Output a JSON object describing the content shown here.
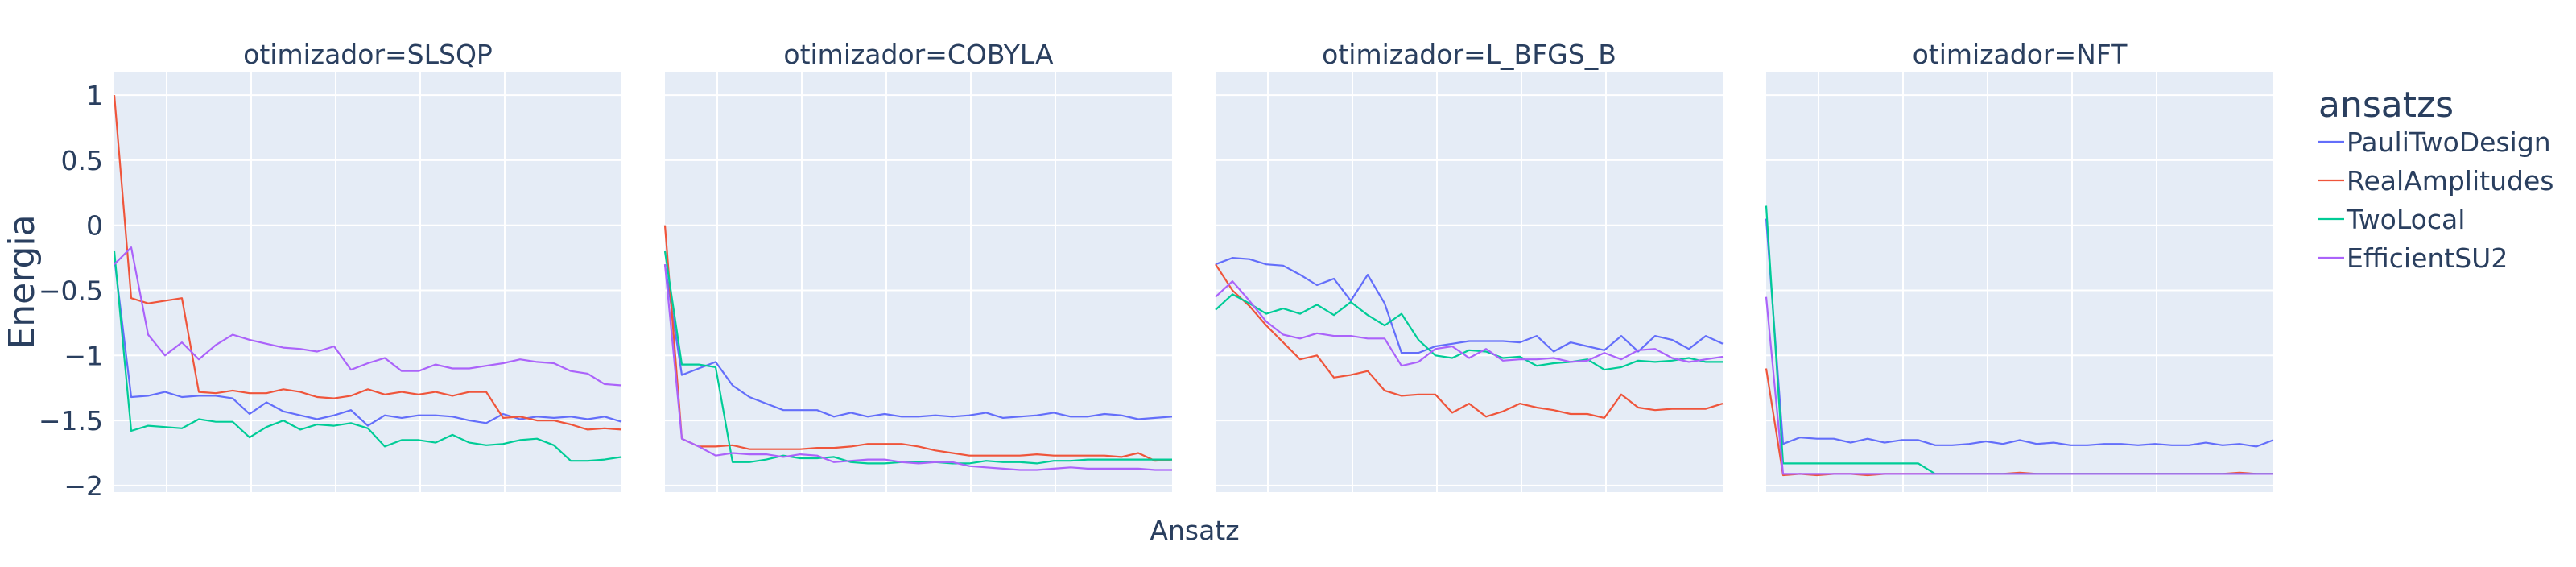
{
  "chart_data": {
    "type": "line",
    "facet_label": "otimizador",
    "panels": [
      "SLSQP",
      "COBYLA",
      "L_BFGS_B",
      "NFT"
    ],
    "xlabel": "Ansatz",
    "ylabel": "Energia",
    "ylim": [
      -2.05,
      1.18
    ],
    "yticks": [
      1,
      0.5,
      0,
      -0.5,
      -1,
      -1.5,
      -2
    ],
    "ytick_labels": [
      "1",
      "0.5",
      "0",
      "−0.5",
      "−1",
      "−1.5",
      "−2"
    ],
    "xlim": [
      0,
      30
    ],
    "grid": true,
    "legend": {
      "title": "ansatzs",
      "placement": "right"
    },
    "series": [
      {
        "name": "PauliTwoDesign",
        "color": "#636efa",
        "panels": [
          [
            -0.25,
            -1.32,
            -1.31,
            -1.28,
            -1.32,
            -1.31,
            -1.31,
            -1.33,
            -1.45,
            -1.36,
            -1.43,
            -1.46,
            -1.49,
            -1.46,
            -1.42,
            -1.54,
            -1.46,
            -1.48,
            -1.46,
            -1.46,
            -1.47,
            -1.5,
            -1.52,
            -1.45,
            -1.49,
            -1.47,
            -1.48,
            -1.47,
            -1.49,
            -1.47,
            -1.51
          ],
          [
            -0.3,
            -1.15,
            -1.1,
            -1.05,
            -1.23,
            -1.32,
            -1.37,
            -1.42,
            -1.42,
            -1.42,
            -1.47,
            -1.44,
            -1.47,
            -1.45,
            -1.47,
            -1.47,
            -1.46,
            -1.47,
            -1.46,
            -1.44,
            -1.48,
            -1.47,
            -1.46,
            -1.44,
            -1.47,
            -1.47,
            -1.45,
            -1.46,
            -1.49,
            -1.48,
            -1.47
          ],
          [
            -0.3,
            -0.25,
            -0.26,
            -0.3,
            -0.31,
            -0.38,
            -0.46,
            -0.41,
            -0.58,
            -0.38,
            -0.6,
            -0.98,
            -0.98,
            -0.93,
            -0.91,
            -0.89,
            -0.89,
            -0.89,
            -0.9,
            -0.85,
            -0.97,
            -0.9,
            -0.93,
            -0.96,
            -0.85,
            -0.97,
            -0.85,
            -0.88,
            -0.95,
            -0.85,
            -0.91
          ],
          [
            0.05,
            -1.68,
            -1.63,
            -1.64,
            -1.64,
            -1.67,
            -1.64,
            -1.67,
            -1.65,
            -1.65,
            -1.69,
            -1.69,
            -1.68,
            -1.66,
            -1.68,
            -1.65,
            -1.68,
            -1.67,
            -1.69,
            -1.69,
            -1.68,
            -1.68,
            -1.69,
            -1.68,
            -1.69,
            -1.69,
            -1.67,
            -1.69,
            -1.68,
            -1.7,
            -1.65
          ]
        ]
      },
      {
        "name": "RealAmplitudes",
        "color": "#ef553b",
        "panels": [
          [
            1.0,
            -0.56,
            -0.6,
            -0.58,
            -0.56,
            -1.28,
            -1.29,
            -1.27,
            -1.29,
            -1.29,
            -1.26,
            -1.28,
            -1.32,
            -1.33,
            -1.31,
            -1.26,
            -1.3,
            -1.28,
            -1.3,
            -1.28,
            -1.31,
            -1.28,
            -1.28,
            -1.48,
            -1.47,
            -1.5,
            -1.5,
            -1.53,
            -1.57,
            -1.56,
            -1.57
          ],
          [
            0.0,
            -1.64,
            -1.7,
            -1.7,
            -1.69,
            -1.72,
            -1.72,
            -1.72,
            -1.72,
            -1.71,
            -1.71,
            -1.7,
            -1.68,
            -1.68,
            -1.68,
            -1.7,
            -1.73,
            -1.75,
            -1.77,
            -1.77,
            -1.77,
            -1.77,
            -1.76,
            -1.77,
            -1.77,
            -1.77,
            -1.77,
            -1.78,
            -1.75,
            -1.81,
            -1.8
          ],
          [
            -0.3,
            -0.5,
            -0.62,
            -0.77,
            -0.9,
            -1.03,
            -1.0,
            -1.17,
            -1.15,
            -1.12,
            -1.27,
            -1.31,
            -1.3,
            -1.3,
            -1.44,
            -1.37,
            -1.47,
            -1.43,
            -1.37,
            -1.4,
            -1.42,
            -1.45,
            -1.45,
            -1.48,
            -1.3,
            -1.4,
            -1.42,
            -1.41,
            -1.41,
            -1.41,
            -1.37
          ],
          [
            -1.1,
            -1.92,
            -1.91,
            -1.92,
            -1.91,
            -1.91,
            -1.92,
            -1.91,
            -1.91,
            -1.91,
            -1.91,
            -1.91,
            -1.91,
            -1.91,
            -1.91,
            -1.9,
            -1.91,
            -1.91,
            -1.91,
            -1.91,
            -1.91,
            -1.91,
            -1.91,
            -1.91,
            -1.91,
            -1.91,
            -1.91,
            -1.91,
            -1.9,
            -1.91,
            -1.91
          ]
        ]
      },
      {
        "name": "TwoLocal",
        "color": "#00cc96",
        "panels": [
          [
            -0.2,
            -1.58,
            -1.54,
            -1.55,
            -1.56,
            -1.49,
            -1.51,
            -1.51,
            -1.63,
            -1.55,
            -1.5,
            -1.57,
            -1.53,
            -1.54,
            -1.52,
            -1.56,
            -1.7,
            -1.65,
            -1.65,
            -1.67,
            -1.61,
            -1.67,
            -1.69,
            -1.68,
            -1.65,
            -1.64,
            -1.69,
            -1.81,
            -1.81,
            -1.8,
            -1.78
          ],
          [
            -0.2,
            -1.07,
            -1.07,
            -1.09,
            -1.82,
            -1.82,
            -1.8,
            -1.77,
            -1.79,
            -1.79,
            -1.78,
            -1.82,
            -1.83,
            -1.83,
            -1.82,
            -1.82,
            -1.82,
            -1.83,
            -1.83,
            -1.81,
            -1.82,
            -1.82,
            -1.83,
            -1.81,
            -1.81,
            -1.8,
            -1.8,
            -1.8,
            -1.8,
            -1.8,
            -1.8
          ],
          [
            -0.65,
            -0.53,
            -0.6,
            -0.68,
            -0.64,
            -0.68,
            -0.61,
            -0.69,
            -0.59,
            -0.69,
            -0.77,
            -0.68,
            -0.88,
            -1.0,
            -1.02,
            -0.96,
            -0.97,
            -1.02,
            -1.01,
            -1.08,
            -1.06,
            -1.05,
            -1.03,
            -1.11,
            -1.09,
            -1.04,
            -1.05,
            -1.04,
            -1.02,
            -1.05,
            -1.05
          ],
          [
            0.15,
            -1.83,
            -1.83,
            -1.83,
            -1.83,
            -1.83,
            -1.83,
            -1.83,
            -1.83,
            -1.83,
            -1.91,
            -1.91,
            -1.91,
            -1.91,
            -1.91,
            -1.91,
            -1.91,
            -1.91,
            -1.91,
            -1.91,
            -1.91,
            -1.91,
            -1.91,
            -1.91,
            -1.91,
            -1.91,
            -1.91,
            -1.91,
            -1.91,
            -1.91,
            -1.91
          ]
        ]
      },
      {
        "name": "EfficientSU2",
        "color": "#ab63fa",
        "panels": [
          [
            -0.3,
            -0.17,
            -0.84,
            -1.0,
            -0.9,
            -1.03,
            -0.92,
            -0.84,
            -0.88,
            -0.91,
            -0.94,
            -0.95,
            -0.97,
            -0.93,
            -1.11,
            -1.06,
            -1.02,
            -1.12,
            -1.12,
            -1.07,
            -1.1,
            -1.1,
            -1.08,
            -1.06,
            -1.03,
            -1.05,
            -1.06,
            -1.12,
            -1.14,
            -1.22,
            -1.23
          ],
          [
            -0.3,
            -1.64,
            -1.7,
            -1.77,
            -1.75,
            -1.76,
            -1.76,
            -1.78,
            -1.76,
            -1.77,
            -1.82,
            -1.81,
            -1.8,
            -1.8,
            -1.82,
            -1.83,
            -1.82,
            -1.82,
            -1.85,
            -1.86,
            -1.87,
            -1.88,
            -1.88,
            -1.87,
            -1.86,
            -1.87,
            -1.87,
            -1.87,
            -1.87,
            -1.88,
            -1.88
          ],
          [
            -0.55,
            -0.43,
            -0.58,
            -0.74,
            -0.84,
            -0.87,
            -0.83,
            -0.85,
            -0.85,
            -0.87,
            -0.87,
            -1.08,
            -1.05,
            -0.95,
            -0.93,
            -1.02,
            -0.95,
            -1.04,
            -1.03,
            -1.03,
            -1.02,
            -1.05,
            -1.04,
            -0.98,
            -1.03,
            -0.96,
            -0.95,
            -1.02,
            -1.05,
            -1.03,
            -1.01
          ],
          [
            -0.55,
            -1.91,
            -1.91,
            -1.91,
            -1.91,
            -1.91,
            -1.91,
            -1.91,
            -1.91,
            -1.91,
            -1.91,
            -1.91,
            -1.91,
            -1.91,
            -1.91,
            -1.91,
            -1.91,
            -1.91,
            -1.91,
            -1.91,
            -1.91,
            -1.91,
            -1.91,
            -1.91,
            -1.91,
            -1.91,
            -1.91,
            -1.91,
            -1.91,
            -1.91,
            -1.91
          ]
        ]
      }
    ]
  }
}
